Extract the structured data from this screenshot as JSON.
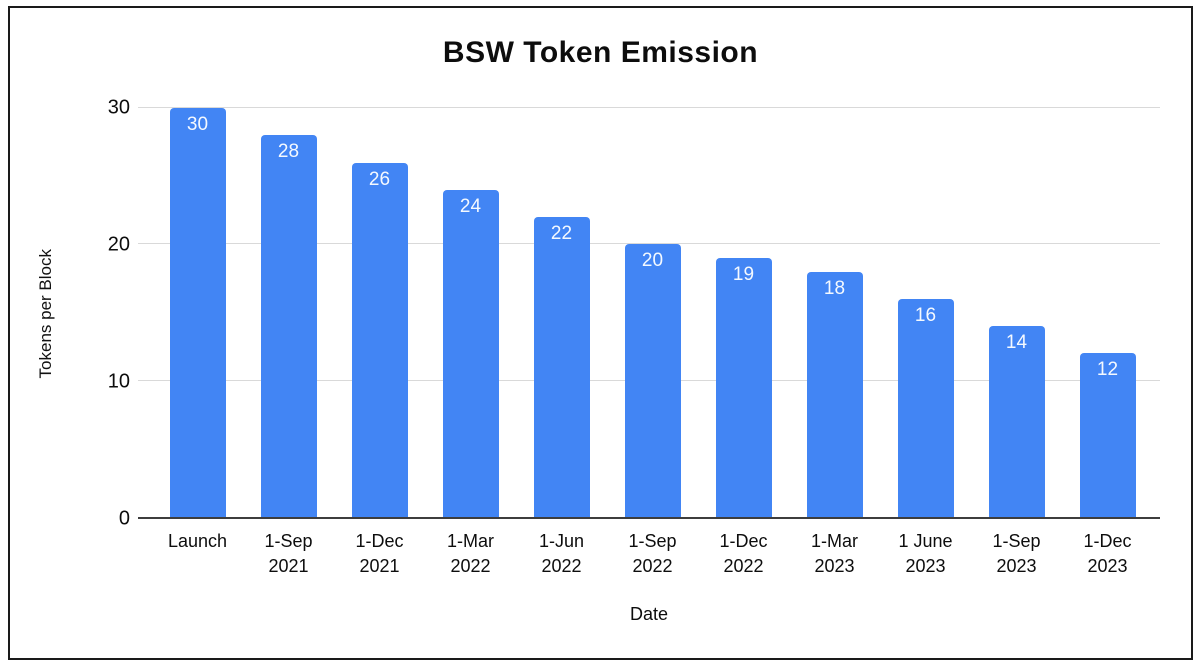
{
  "chart_data": {
    "type": "bar",
    "title": "BSW Token Emission",
    "xlabel": "Date",
    "ylabel": "Tokens per Block",
    "categories": [
      "Launch",
      "1-Sep\n2021",
      "1-Dec\n2021",
      "1-Mar\n2022",
      "1-Jun\n2022",
      "1-Sep\n2022",
      "1-Dec\n2022",
      "1-Mar\n2023",
      "1 June\n2023",
      "1-Sep\n2023",
      "1-Dec\n2023"
    ],
    "values": [
      30,
      28,
      26,
      24,
      22,
      20,
      19,
      18,
      16,
      14,
      12
    ],
    "yticks": [
      0,
      10,
      20,
      30
    ],
    "ylim": [
      0,
      30
    ],
    "grid": true,
    "legend": "none",
    "colors": {
      "bar_fill": "#4285f4",
      "bar_value_label": "#f4f9ff",
      "gridline": "#d9d9d9",
      "axis_line": "#3d3d3d",
      "text": "#0d0d0d",
      "frame_border": "#1a1a1a",
      "background": "#ffffff"
    }
  }
}
